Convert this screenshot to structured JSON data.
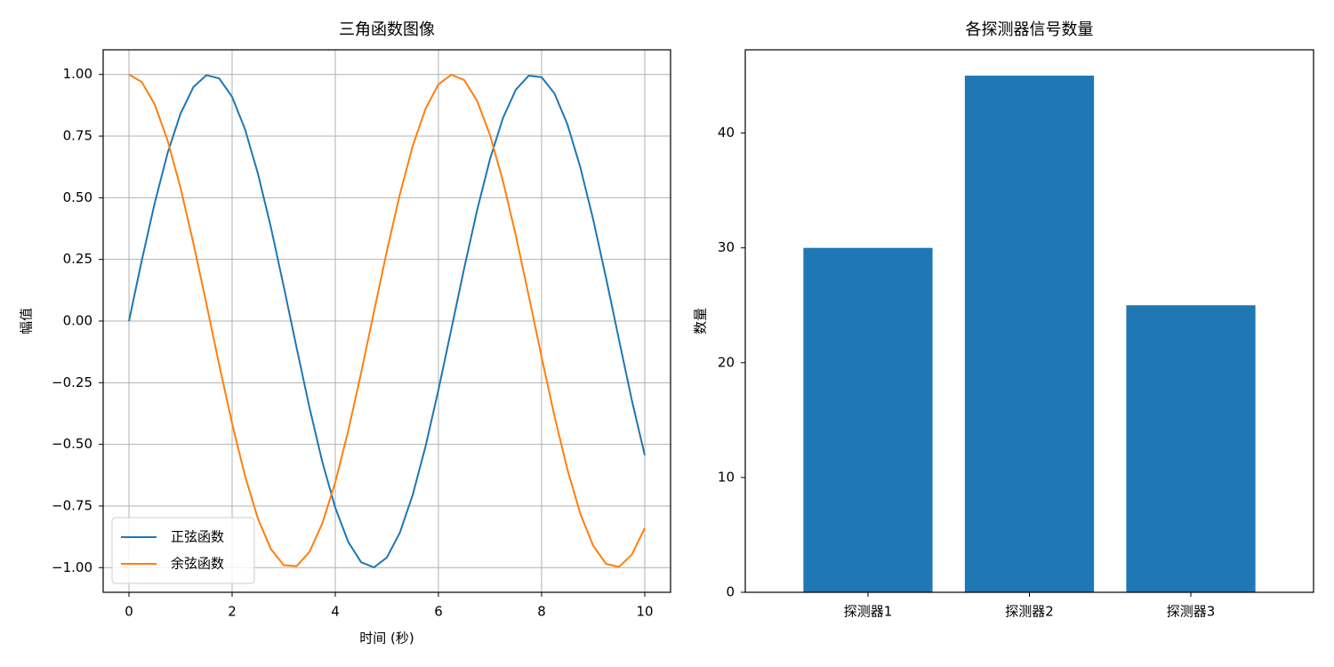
{
  "chart_data": [
    {
      "type": "line",
      "title": "三角函数图像",
      "xlabel": "时间 (秒)",
      "ylabel": "幅值",
      "x": [
        0,
        0.25,
        0.5,
        0.75,
        1,
        1.25,
        1.5,
        1.75,
        2,
        2.25,
        2.5,
        2.75,
        3,
        3.25,
        3.5,
        3.75,
        4,
        4.25,
        4.5,
        4.75,
        5,
        5.25,
        5.5,
        5.75,
        6,
        6.25,
        6.5,
        6.75,
        7,
        7.25,
        7.5,
        7.75,
        8,
        8.25,
        8.5,
        8.75,
        9,
        9.25,
        9.5,
        9.75,
        10
      ],
      "series": [
        {
          "name": "正弦函数",
          "color": "#1f77b4",
          "values": [
            0,
            0.247,
            0.479,
            0.682,
            0.841,
            0.949,
            0.997,
            0.984,
            0.909,
            0.778,
            0.598,
            0.382,
            0.141,
            -0.108,
            -0.351,
            -0.572,
            -0.757,
            -0.895,
            -0.978,
            -0.999,
            -0.959,
            -0.859,
            -0.706,
            -0.508,
            -0.279,
            -0.033,
            0.215,
            0.45,
            0.657,
            0.823,
            0.938,
            0.995,
            0.989,
            0.923,
            0.798,
            0.624,
            0.412,
            0.174,
            -0.075,
            -0.322,
            -0.544
          ]
        },
        {
          "name": "余弦函数",
          "color": "#ff7f0e",
          "values": [
            1,
            0.969,
            0.878,
            0.732,
            0.54,
            0.315,
            0.071,
            -0.178,
            -0.416,
            -0.628,
            -0.801,
            -0.924,
            -0.99,
            -0.994,
            -0.936,
            -0.82,
            -0.654,
            -0.446,
            -0.211,
            0.038,
            0.284,
            0.512,
            0.709,
            0.861,
            0.96,
            0.999,
            0.977,
            0.893,
            0.754,
            0.568,
            0.347,
            0.103,
            -0.146,
            -0.386,
            -0.602,
            -0.781,
            -0.911,
            -0.985,
            -0.997,
            -0.947,
            -0.839
          ]
        }
      ],
      "xlim": [
        -0.5,
        10.5
      ],
      "xticks": [
        0,
        2,
        4,
        6,
        8,
        10
      ],
      "ylim": [
        -1.1,
        1.1
      ],
      "yticks": [
        {
          "value": -1,
          "label": "−1.00"
        },
        {
          "value": -0.75,
          "label": "−0.75"
        },
        {
          "value": -0.5,
          "label": "−0.50"
        },
        {
          "value": -0.25,
          "label": "−0.25"
        },
        {
          "value": 0,
          "label": "0.00"
        },
        {
          "value": 0.25,
          "label": "0.25"
        },
        {
          "value": 0.5,
          "label": "0.50"
        },
        {
          "value": 0.75,
          "label": "0.75"
        },
        {
          "value": 1,
          "label": "1.00"
        }
      ],
      "grid": true,
      "legend": "lower left"
    },
    {
      "type": "bar",
      "title": "各探测器信号数量",
      "ylabel": "数量",
      "categories": [
        "探测器1",
        "探测器2",
        "探测器3"
      ],
      "values": [
        30,
        45,
        25
      ],
      "color": "#1f77b4",
      "ylim": [
        0,
        47.25
      ],
      "yticks": [
        0,
        10,
        20,
        30,
        40
      ],
      "grid": false
    }
  ]
}
